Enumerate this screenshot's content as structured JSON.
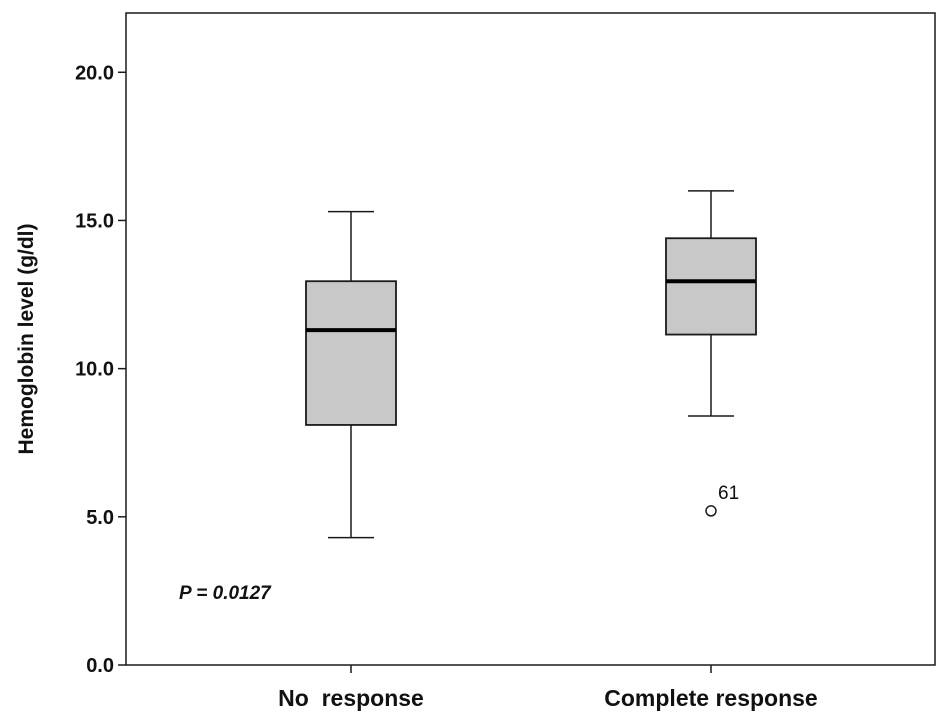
{
  "chart_data": {
    "type": "box",
    "ylabel": "Hemoglobin level (g/dl)",
    "ylim": [
      0,
      22
    ],
    "yticks": [
      {
        "value": 0,
        "label": "0.0"
      },
      {
        "value": 5,
        "label": "5.0"
      },
      {
        "value": 10,
        "label": "10.0"
      },
      {
        "value": 15,
        "label": "15.0"
      },
      {
        "value": 20,
        "label": "20.0"
      }
    ],
    "categories": [
      "No  response",
      "Complete response"
    ],
    "boxes": [
      {
        "category": "No  response",
        "whisker_low": 4.3,
        "q1": 8.1,
        "median": 11.3,
        "q3": 12.95,
        "whisker_high": 15.3,
        "outliers": []
      },
      {
        "category": "Complete response",
        "whisker_low": 8.4,
        "q1": 11.15,
        "median": 12.95,
        "q3": 14.4,
        "whisker_high": 16.0,
        "outliers": [
          {
            "value": 5.2,
            "label": "61"
          }
        ]
      }
    ],
    "annotation": "P = 0.0127",
    "box_fill": "#c8c8c8",
    "grid": false
  }
}
